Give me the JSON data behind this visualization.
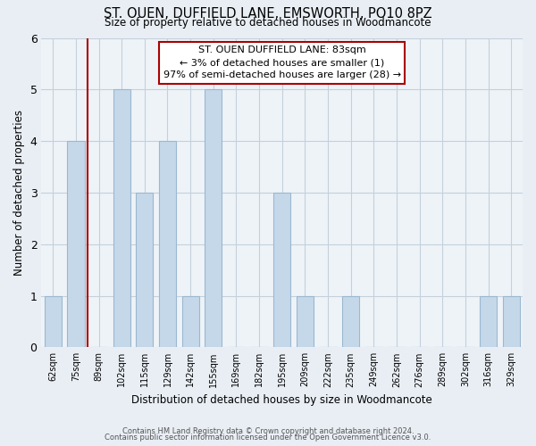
{
  "title": "ST. OUEN, DUFFIELD LANE, EMSWORTH, PO10 8PZ",
  "subtitle": "Size of property relative to detached houses in Woodmancote",
  "xlabel": "Distribution of detached houses by size in Woodmancote",
  "ylabel": "Number of detached properties",
  "bar_color": "#c5d8ea",
  "bar_edge_color": "#9bb8d0",
  "categories": [
    "62sqm",
    "75sqm",
    "89sqm",
    "102sqm",
    "115sqm",
    "129sqm",
    "142sqm",
    "155sqm",
    "169sqm",
    "182sqm",
    "195sqm",
    "209sqm",
    "222sqm",
    "235sqm",
    "249sqm",
    "262sqm",
    "276sqm",
    "289sqm",
    "302sqm",
    "316sqm",
    "329sqm"
  ],
  "values": [
    1,
    4,
    0,
    5,
    3,
    4,
    1,
    5,
    0,
    0,
    3,
    1,
    0,
    1,
    0,
    0,
    0,
    0,
    0,
    1,
    1
  ],
  "ylim": [
    0,
    6
  ],
  "yticks": [
    0,
    1,
    2,
    3,
    4,
    5,
    6
  ],
  "property_line_color": "#aa0000",
  "annotation_title": "ST. OUEN DUFFIELD LANE: 83sqm",
  "annotation_line1": "← 3% of detached houses are smaller (1)",
  "annotation_line2": "97% of semi-detached houses are larger (28) →",
  "annotation_box_color": "#ffffff",
  "annotation_box_edge_color": "#aa0000",
  "footer_line1": "Contains HM Land Registry data © Crown copyright and database right 2024.",
  "footer_line2": "Contains public sector information licensed under the Open Government Licence v3.0.",
  "background_color": "#e8eef4",
  "plot_background_color": "#eef3f8",
  "grid_color": "#c5d0db"
}
